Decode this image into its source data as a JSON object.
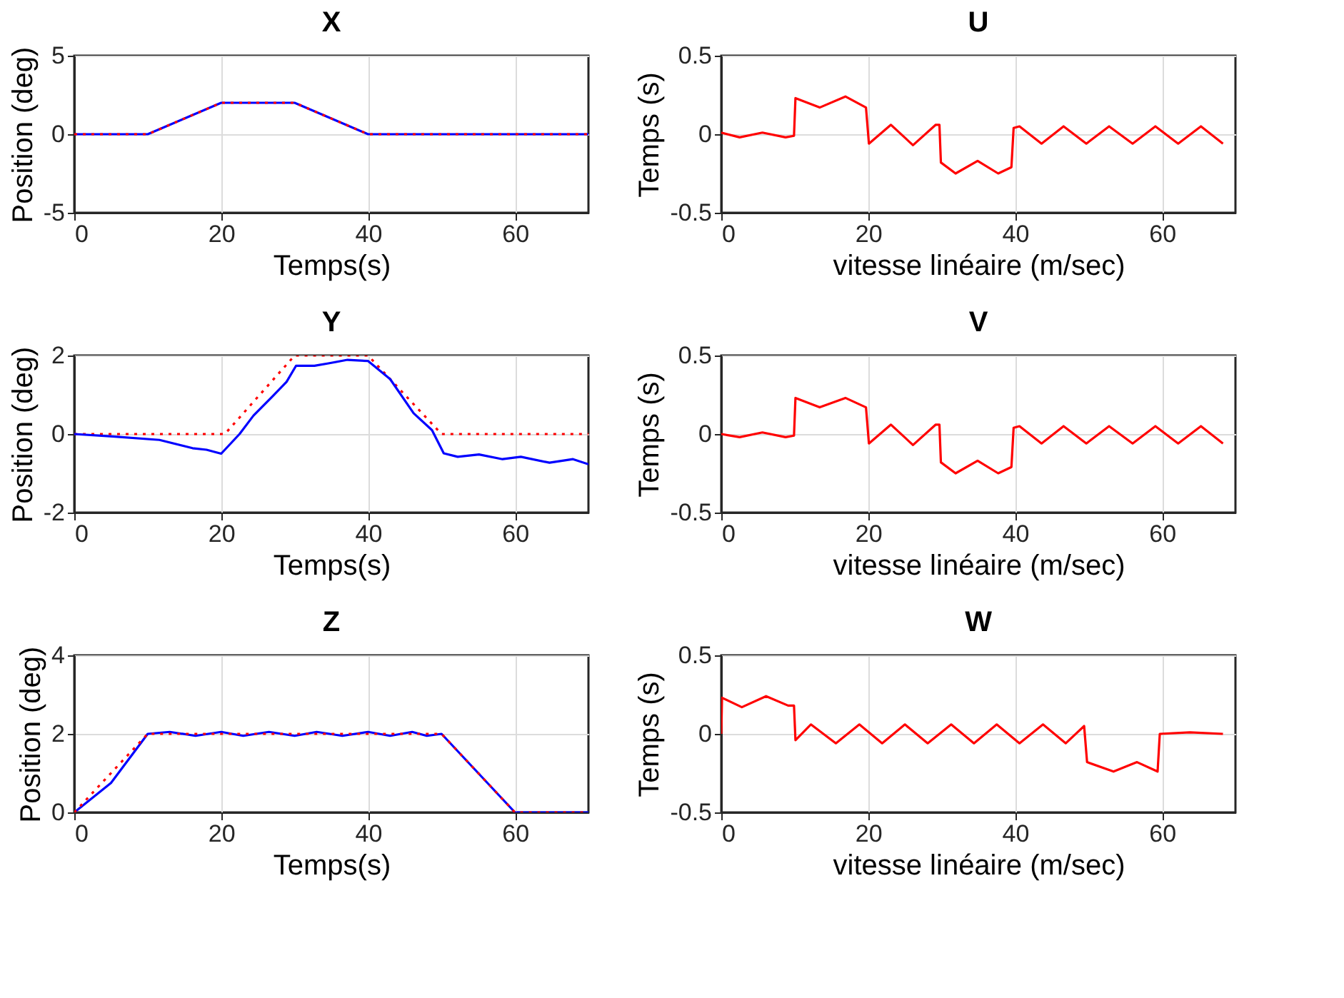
{
  "chart_data": [
    {
      "type": "line",
      "title": "X",
      "xlabel": "Temps(s)",
      "ylabel": "Position (deg)",
      "xlim": [
        0,
        70
      ],
      "xticks": [
        0,
        20,
        40,
        60
      ],
      "ylim": [
        -5,
        5
      ],
      "yticks": [
        -5,
        0,
        5
      ],
      "grid": true,
      "series": [
        {
          "color": "#0000ff",
          "line_style": "solid",
          "x": [
            0,
            10,
            15,
            20,
            30,
            35,
            40,
            70
          ],
          "values": [
            0,
            0,
            1,
            2,
            2,
            1,
            0,
            0
          ]
        },
        {
          "color": "#ff0000",
          "line_style": "dotted",
          "x": [
            0,
            10,
            20,
            30,
            40,
            70
          ],
          "values": [
            0,
            0,
            2,
            2,
            0,
            0
          ]
        }
      ]
    },
    {
      "type": "line",
      "title": "U",
      "xlabel": "vitesse linéaire (m/sec)",
      "ylabel": "Temps (s)",
      "xlim": [
        0,
        70
      ],
      "xticks": [
        0,
        20,
        40,
        60
      ],
      "ylim": [
        -0.5,
        0.5
      ],
      "yticks": [
        -0.5,
        0,
        0.5
      ],
      "grid": true,
      "series": [
        {
          "color": "#ff0000",
          "line_style": "solid",
          "x": [
            0,
            2.5,
            5.6,
            8.75,
            9.9,
            10.1,
            13.4,
            16.9,
            19.7,
            20.1,
            23.1,
            26.1,
            29.2,
            29.7,
            29.9,
            31.9,
            34.9,
            37.7,
            39.5,
            39.8,
            40.6,
            43.6,
            46.6,
            49.7,
            52.8,
            56,
            59.1,
            62.2,
            65.3,
            68.3
          ],
          "values": [
            0.01,
            -0.02,
            0.01,
            -0.02,
            -0.01,
            0.23,
            0.17,
            0.24,
            0.17,
            -0.06,
            0.06,
            -0.07,
            0.06,
            0.06,
            -0.18,
            -0.25,
            -0.17,
            -0.25,
            -0.21,
            0.04,
            0.05,
            -0.06,
            0.05,
            -0.06,
            0.05,
            -0.06,
            0.05,
            -0.06,
            0.05,
            -0.06
          ]
        }
      ]
    },
    {
      "type": "line",
      "title": "Y",
      "xlabel": "Temps(s)",
      "ylabel": "Position (deg)",
      "xlim": [
        0,
        70
      ],
      "xticks": [
        0,
        20,
        40,
        60
      ],
      "ylim": [
        -2,
        2
      ],
      "yticks": [
        -2,
        0,
        2
      ],
      "grid": true,
      "series": [
        {
          "color": "#ff0000",
          "line_style": "dotted",
          "x": [
            0,
            20.5,
            30,
            40,
            50,
            70
          ],
          "values": [
            0,
            0,
            2,
            2,
            0,
            0
          ]
        },
        {
          "color": "#0000ff",
          "line_style": "solid",
          "x": [
            0,
            5.2,
            11.6,
            16.1,
            18,
            20,
            22.5,
            24.4,
            27,
            28.9,
            30.2,
            32.7,
            34.6,
            37.2,
            40,
            43,
            46.2,
            48.7,
            50.3,
            52.2,
            55.1,
            58.3,
            60.8,
            64.7,
            67.9,
            70
          ],
          "values": [
            0,
            -0.06,
            -0.15,
            -0.36,
            -0.4,
            -0.5,
            0,
            0.47,
            0.96,
            1.33,
            1.74,
            1.74,
            1.8,
            1.89,
            1.86,
            1.4,
            0.53,
            0.1,
            -0.49,
            -0.58,
            -0.52,
            -0.64,
            -0.58,
            -0.73,
            -0.64,
            -0.77
          ]
        }
      ]
    },
    {
      "type": "line",
      "title": "V",
      "xlabel": "vitesse linéaire (m/sec)",
      "ylabel": "Temps (s)",
      "xlim": [
        0,
        70
      ],
      "xticks": [
        0,
        20,
        40,
        60
      ],
      "ylim": [
        -0.5,
        0.5
      ],
      "yticks": [
        -0.5,
        0,
        0.5
      ],
      "grid": true,
      "series": [
        {
          "color": "#ff0000",
          "line_style": "solid",
          "x": [
            0,
            2.5,
            5.6,
            8.75,
            9.9,
            10.1,
            13.4,
            16.9,
            19.7,
            20.1,
            23.1,
            26.1,
            29.2,
            29.7,
            29.9,
            31.9,
            34.9,
            37.7,
            39.5,
            39.8,
            40.6,
            43.6,
            46.6,
            49.7,
            52.8,
            56,
            59.1,
            62.2,
            65.3,
            68.3
          ],
          "values": [
            0,
            -0.02,
            0.01,
            -0.02,
            -0.01,
            0.23,
            0.17,
            0.23,
            0.17,
            -0.06,
            0.06,
            -0.07,
            0.06,
            0.06,
            -0.18,
            -0.25,
            -0.17,
            -0.25,
            -0.21,
            0.04,
            0.05,
            -0.06,
            0.05,
            -0.06,
            0.05,
            -0.06,
            0.05,
            -0.06,
            0.05,
            -0.06
          ]
        }
      ]
    },
    {
      "type": "line",
      "title": "Z",
      "xlabel": "Temps(s)",
      "ylabel": "Position (deg)",
      "xlim": [
        0,
        70
      ],
      "xticks": [
        0,
        20,
        40,
        60
      ],
      "ylim": [
        0,
        4
      ],
      "yticks": [
        0,
        2,
        4
      ],
      "grid": true,
      "series": [
        {
          "color": "#0000ff",
          "line_style": "solid",
          "x": [
            0,
            5,
            10,
            13,
            16.5,
            20,
            23,
            26.5,
            30,
            33,
            36.5,
            40,
            43,
            46,
            48,
            50,
            55,
            60,
            70
          ],
          "values": [
            0,
            0.75,
            2,
            2.05,
            1.95,
            2.05,
            1.95,
            2.05,
            1.95,
            2.05,
            1.95,
            2.05,
            1.95,
            2.05,
            1.95,
            2,
            1,
            0,
            0
          ]
        },
        {
          "color": "#ff0000",
          "line_style": "dotted",
          "x": [
            0,
            10,
            50,
            60,
            70
          ],
          "values": [
            0,
            2,
            2,
            0,
            0
          ]
        }
      ]
    },
    {
      "type": "line",
      "title": "W",
      "xlabel": "vitesse linéaire (m/sec)",
      "ylabel": "Temps (s)",
      "xlim": [
        0,
        70
      ],
      "xticks": [
        0,
        20,
        40,
        60
      ],
      "ylim": [
        -0.5,
        0.5
      ],
      "yticks": [
        -0.5,
        0,
        0.5
      ],
      "grid": true,
      "series": [
        {
          "color": "#ff0000",
          "line_style": "solid",
          "x": [
            0,
            0.1,
            2.8,
            6.1,
            9.1,
            9.9,
            10.1,
            12.2,
            15.6,
            18.8,
            21.9,
            25,
            28.1,
            31.3,
            34.4,
            37.5,
            40.6,
            43.8,
            46.9,
            49.4,
            49.8,
            53.4,
            56.6,
            59.4,
            59.7,
            63.8,
            68.3
          ],
          "values": [
            0,
            0.23,
            0.17,
            0.24,
            0.18,
            0.18,
            -0.04,
            0.06,
            -0.06,
            0.06,
            -0.06,
            0.06,
            -0.06,
            0.06,
            -0.06,
            0.06,
            -0.06,
            0.06,
            -0.06,
            0.05,
            -0.18,
            -0.24,
            -0.18,
            -0.24,
            0,
            0.01,
            0
          ]
        }
      ]
    }
  ]
}
